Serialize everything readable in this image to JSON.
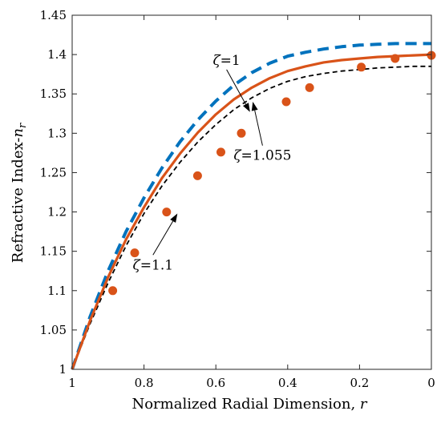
{
  "chart_data": {
    "type": "line",
    "xlabel": "Normalized Radial Dimension, ",
    "xlabel_var": "r",
    "ylabel": "Refractive Index-",
    "ylabel_var": "n",
    "ylabel_sub": "r",
    "xlim": [
      1,
      0
    ],
    "ylim": [
      1,
      1.45
    ],
    "x_reversed": true,
    "xticks": [
      1,
      0.8,
      0.6,
      0.4,
      0.2,
      0
    ],
    "xtick_labels": [
      "1",
      "0.8",
      "0.6",
      "0.4",
      "0.2",
      "0"
    ],
    "yticks": [
      1,
      1.05,
      1.1,
      1.15,
      1.2,
      1.25,
      1.3,
      1.35,
      1.4,
      1.45
    ],
    "ytick_labels": [
      "1",
      "1.05",
      "1.1",
      "1.15",
      "1.2",
      "1.25",
      "1.3",
      "1.35",
      "1.4",
      "1.45"
    ],
    "grid": false,
    "series": [
      {
        "label": "ζ=1",
        "color": "#0072BD",
        "style": "dashed-thick",
        "x": [
          1,
          0.95,
          0.9,
          0.85,
          0.8,
          0.75,
          0.7,
          0.65,
          0.6,
          0.55,
          0.5,
          0.45,
          0.4,
          0.35,
          0.3,
          0.25,
          0.2,
          0.15,
          0.1,
          0.05,
          0
        ],
        "y": [
          1.0,
          1.067,
          1.125,
          1.175,
          1.218,
          1.256,
          1.289,
          1.317,
          1.341,
          1.361,
          1.377,
          1.389,
          1.398,
          1.403,
          1.407,
          1.41,
          1.412,
          1.413,
          1.414,
          1.414,
          1.414
        ]
      },
      {
        "label": "ζ=1.055",
        "color": "#D95319",
        "style": "solid-markers",
        "x": [
          1,
          0.95,
          0.9,
          0.85,
          0.8,
          0.75,
          0.7,
          0.65,
          0.6,
          0.55,
          0.5,
          0.45,
          0.4,
          0.35,
          0.3,
          0.25,
          0.2,
          0.15,
          0.1,
          0.05,
          0
        ],
        "y": [
          1.0,
          1.062,
          1.117,
          1.165,
          1.206,
          1.243,
          1.274,
          1.301,
          1.324,
          1.343,
          1.358,
          1.37,
          1.379,
          1.385,
          1.39,
          1.393,
          1.395,
          1.397,
          1.398,
          1.399,
          1.4
        ]
      },
      {
        "label": "ζ=1.1",
        "color": "#000000",
        "style": "dashed-thin",
        "x": [
          1,
          0.95,
          0.9,
          0.85,
          0.8,
          0.75,
          0.7,
          0.65,
          0.6,
          0.55,
          0.5,
          0.45,
          0.4,
          0.35,
          0.3,
          0.25,
          0.2,
          0.15,
          0.1,
          0.05,
          0
        ],
        "y": [
          1.0,
          1.058,
          1.11,
          1.157,
          1.198,
          1.233,
          1.263,
          1.289,
          1.311,
          1.33,
          1.345,
          1.357,
          1.366,
          1.372,
          1.376,
          1.379,
          1.381,
          1.383,
          1.384,
          1.385,
          1.385
        ]
      }
    ],
    "markers": {
      "series": "ζ=1.055",
      "x": [
        0.887,
        0.826,
        0.737,
        0.651,
        0.586,
        0.529,
        0.404,
        0.339,
        0.195,
        0.101,
        0
      ],
      "y": [
        1.1,
        1.148,
        1.2,
        1.246,
        1.276,
        1.3,
        1.34,
        1.358,
        1.384,
        1.395,
        1.399
      ]
    },
    "annotations": [
      {
        "prefix": "ζ",
        "text": "=1",
        "text_x": 0.57,
        "text_y": 1.387,
        "arrow_to_x": 0.505,
        "arrow_to_y": 1.327
      },
      {
        "prefix": "ζ",
        "text": "=1.055",
        "text_x": 0.47,
        "text_y": 1.266,
        "arrow_to_x": 0.497,
        "arrow_to_y": 1.34
      },
      {
        "prefix": "ζ",
        "text": "=1.1",
        "text_x": 0.775,
        "text_y": 1.127,
        "arrow_to_x": 0.707,
        "arrow_to_y": 1.198
      }
    ]
  }
}
